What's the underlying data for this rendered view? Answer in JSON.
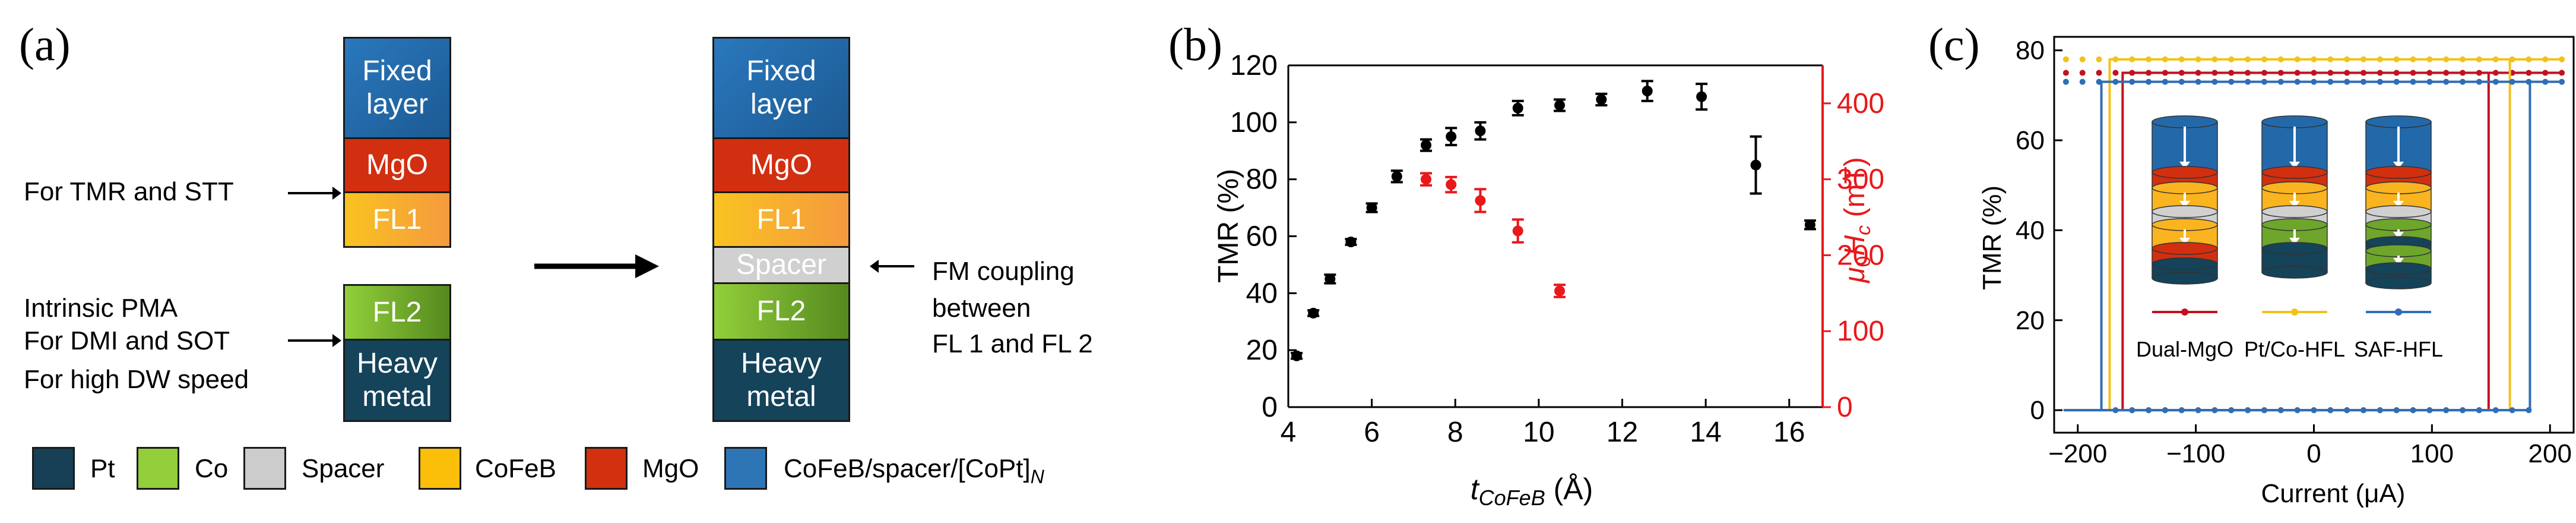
{
  "panel_a": {
    "label": "(a)",
    "left_stack": {
      "fixed": "Fixed layer",
      "mgo": "MgO",
      "fl1": "FL1",
      "fl2": "FL2",
      "heavy": "Heavy metal"
    },
    "right_stack": {
      "fixed": "Fixed layer",
      "mgo": "MgO",
      "fl1": "FL1",
      "spacer": "Spacer",
      "fl2": "FL2",
      "heavy": "Heavy metal"
    },
    "annot_tmr": "For TMR and STT",
    "annot_pma_1": "Intrinsic PMA",
    "annot_pma_2": "For DMI and SOT",
    "annot_pma_3": "For high DW speed",
    "annot_fm_1": "FM coupling",
    "annot_fm_2": "between",
    "annot_fm_3": "FL 1 and FL 2",
    "legend": [
      {
        "label": "Pt",
        "color": "#173f55"
      },
      {
        "label": "Co",
        "color": "#92cf3a"
      },
      {
        "label": "Spacer",
        "color": "#cccccc"
      },
      {
        "label": "CoFeB",
        "color": "#fbbf0a"
      },
      {
        "label": "MgO",
        "color": "#d2300e"
      },
      {
        "label": "CoFeB/spacer/[CoPt]",
        "sub": "N",
        "color": "#2e75b6"
      }
    ]
  },
  "colors": {
    "fixed": "#2369a9",
    "mgo": "#d12f10",
    "fl1": "#f9b41f",
    "spacer": "#d0d0d0",
    "fl2": "#6ea52b",
    "heavy": "#14435a",
    "black": "#000000",
    "red": "#e8181b",
    "dual": "#c1121f",
    "ptco": "#f2c21b",
    "saf": "#2f6eb5"
  },
  "chart_data": [
    {
      "type": "scatter",
      "panel": "(b)",
      "xlabel_main": "t",
      "xlabel_sub": "CoFeB",
      "xlabel_unit": " (Å)",
      "ylabel": "TMR (%)",
      "ylabel2_mu": "μ",
      "ylabel2_sub1": "0",
      "ylabel2_H": "H",
      "ylabel2_sub2": "c",
      "ylabel2_unit": " (mT)",
      "xlim": [
        4,
        16.8
      ],
      "ylim": [
        0,
        120
      ],
      "y2lim": [
        0,
        450
      ],
      "xticks": [
        "4",
        "6",
        "8",
        "10",
        "12",
        "14",
        "16"
      ],
      "yticks": [
        "0",
        "20",
        "40",
        "60",
        "80",
        "100",
        "120"
      ],
      "y2ticks": [
        "0",
        "100",
        "200",
        "300",
        "400"
      ],
      "series": [
        {
          "name": "TMR",
          "axis": "left",
          "x": [
            4.2,
            4.6,
            5.0,
            5.5,
            6.0,
            6.6,
            7.3,
            7.9,
            8.6,
            9.5,
            10.5,
            11.5,
            12.6,
            13.9,
            15.2,
            16.5
          ],
          "y": [
            18,
            33,
            45,
            58,
            70,
            81,
            92,
            95,
            97,
            105,
            106,
            108,
            111,
            109,
            85,
            64
          ],
          "err": [
            1,
            1,
            1.5,
            1,
            1.5,
            2,
            2,
            3,
            3,
            2.5,
            2,
            2,
            3.5,
            4.5,
            10,
            1.5
          ]
        },
        {
          "name": "Hc",
          "axis": "right",
          "x": [
            7.3,
            7.9,
            8.6,
            9.5,
            10.5
          ],
          "y": [
            300,
            293,
            272,
            232,
            153
          ],
          "err": [
            8,
            10,
            15,
            15,
            8
          ]
        }
      ]
    },
    {
      "type": "line",
      "panel": "(c)",
      "xlabel": "Current (μA)",
      "ylabel": "TMR (%)",
      "xlim": [
        -220,
        220
      ],
      "ylim": [
        -5,
        83
      ],
      "xticks": [
        "-200",
        "-100",
        "0",
        "100",
        "200"
      ],
      "yticks": [
        "0",
        "20",
        "40",
        "60",
        "80"
      ],
      "series": [
        {
          "name": "Dual-MgO",
          "high": 75,
          "low": 0,
          "switch_left": -162,
          "switch_right": 148
        },
        {
          "name": "Pt/Co-HFL",
          "high": 78,
          "low": 0,
          "switch_left": -173,
          "switch_right": 166
        },
        {
          "name": "SAF-HFL",
          "high": 73,
          "low": 0,
          "switch_left": -180,
          "switch_right": 183
        }
      ],
      "legend": [
        "Dual-MgO",
        "Pt/Co-HFL",
        "SAF-HFL"
      ]
    }
  ]
}
